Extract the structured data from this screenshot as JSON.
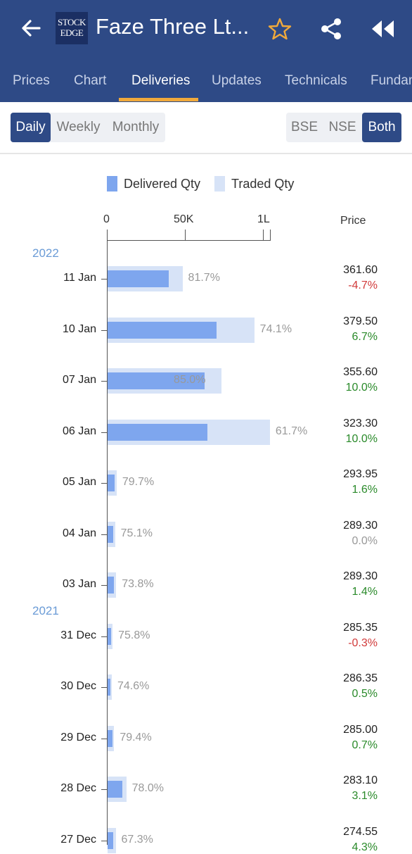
{
  "header": {
    "logo_text_line1": "STOCK",
    "logo_text_line2": "EDGE",
    "title": "Faze Three Lt...",
    "back_icon": "arrow-left-icon",
    "star_icon": "star-outline-icon",
    "share_icon": "share-icon",
    "rewind_icon": "rewind-icon"
  },
  "tabs": [
    "Prices",
    "Chart",
    "Deliveries",
    "Updates",
    "Technicals",
    "Fundam"
  ],
  "active_tab": "Deliveries",
  "period_toggle": {
    "options": [
      "Daily",
      "Weekly",
      "Monthly"
    ],
    "selected": "Daily"
  },
  "exchange_toggle": {
    "options": [
      "BSE",
      "NSE",
      "Both"
    ],
    "selected": "Both"
  },
  "legend": {
    "delivered": "Delivered Qty",
    "traded": "Traded Qty"
  },
  "axis": {
    "ticks": [
      "0",
      "50K",
      "1L"
    ]
  },
  "price_header": "Price",
  "colors": {
    "primary": "#2e4a86",
    "accent": "#f0a93b",
    "delivered": "#7ea6ee",
    "traded": "#d7e3f7",
    "up": "#2a8a2a",
    "down": "#d13a3a",
    "neutral": "#999999",
    "year": "#6a9bd6"
  },
  "chart_data": {
    "type": "bar",
    "xlim": [
      0,
      100000
    ],
    "rows": [
      {
        "year": "2022",
        "date": "11 Jan",
        "traded": 48000,
        "delivered": 39000,
        "pct": "81.7%",
        "price": "361.60",
        "change": "-4.7%",
        "dir": "down"
      },
      {
        "date": "10 Jan",
        "traded": 94000,
        "delivered": 70000,
        "pct": "74.1%",
        "price": "379.50",
        "change": "6.7%",
        "dir": "up"
      },
      {
        "date": "07 Jan",
        "traded": 73000,
        "delivered": 62000,
        "pct": "85.0%",
        "price": "355.60",
        "change": "10.0%",
        "dir": "up"
      },
      {
        "date": "06 Jan",
        "traded": 104000,
        "delivered": 64000,
        "pct": "61.7%",
        "price": "323.30",
        "change": "10.0%",
        "dir": "up"
      },
      {
        "date": "05 Jan",
        "traded": 5800,
        "delivered": 4600,
        "pct": "79.7%",
        "price": "293.95",
        "change": "1.6%",
        "dir": "up"
      },
      {
        "date": "04 Jan",
        "traded": 4800,
        "delivered": 3600,
        "pct": "75.1%",
        "price": "289.30",
        "change": "0.0%",
        "dir": "neutral"
      },
      {
        "date": "03 Jan",
        "traded": 5500,
        "delivered": 4100,
        "pct": "73.8%",
        "price": "289.30",
        "change": "1.4%",
        "dir": "up"
      },
      {
        "year": "2021",
        "date": "31 Dec",
        "traded": 3200,
        "delivered": 2400,
        "pct": "75.8%",
        "price": "285.35",
        "change": "-0.3%",
        "dir": "down"
      },
      {
        "date": "30 Dec",
        "traded": 2700,
        "delivered": 2000,
        "pct": "74.6%",
        "price": "286.35",
        "change": "0.5%",
        "dir": "up"
      },
      {
        "date": "29 Dec",
        "traded": 4200,
        "delivered": 3300,
        "pct": "79.4%",
        "price": "285.00",
        "change": "0.7%",
        "dir": "up"
      },
      {
        "date": "28 Dec",
        "traded": 12000,
        "delivered": 9300,
        "pct": "78.0%",
        "price": "283.10",
        "change": "3.1%",
        "dir": "up"
      },
      {
        "date": "27 Dec",
        "traded": 5200,
        "delivered": 3500,
        "pct": "67.3%",
        "price": "274.55",
        "change": "4.3%",
        "dir": "up"
      }
    ]
  }
}
